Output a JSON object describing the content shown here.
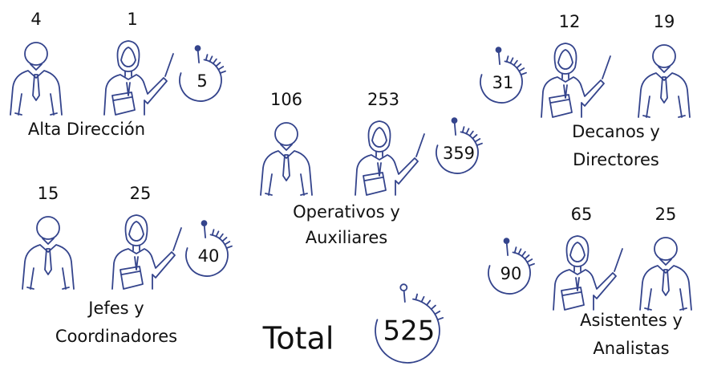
{
  "groups": [
    {
      "label": [
        "Alta Dirección"
      ],
      "men": 4,
      "women": 1,
      "total": 5
    },
    {
      "label": [
        "Operativos y",
        "Auxiliares"
      ],
      "men": 106,
      "women": 253,
      "total": 359
    },
    {
      "label": [
        "Decanos y",
        "Directores"
      ],
      "men": 19,
      "women": 12,
      "total": 31
    },
    {
      "label": [
        "Jefes y",
        "Coordinadores"
      ],
      "men": 15,
      "women": 25,
      "total": 40
    },
    {
      "label": [
        "Asistentes y",
        "Analistas"
      ],
      "men": 25,
      "women": 65,
      "total": 90
    }
  ],
  "total": {
    "label": "Total",
    "value": 525
  }
}
